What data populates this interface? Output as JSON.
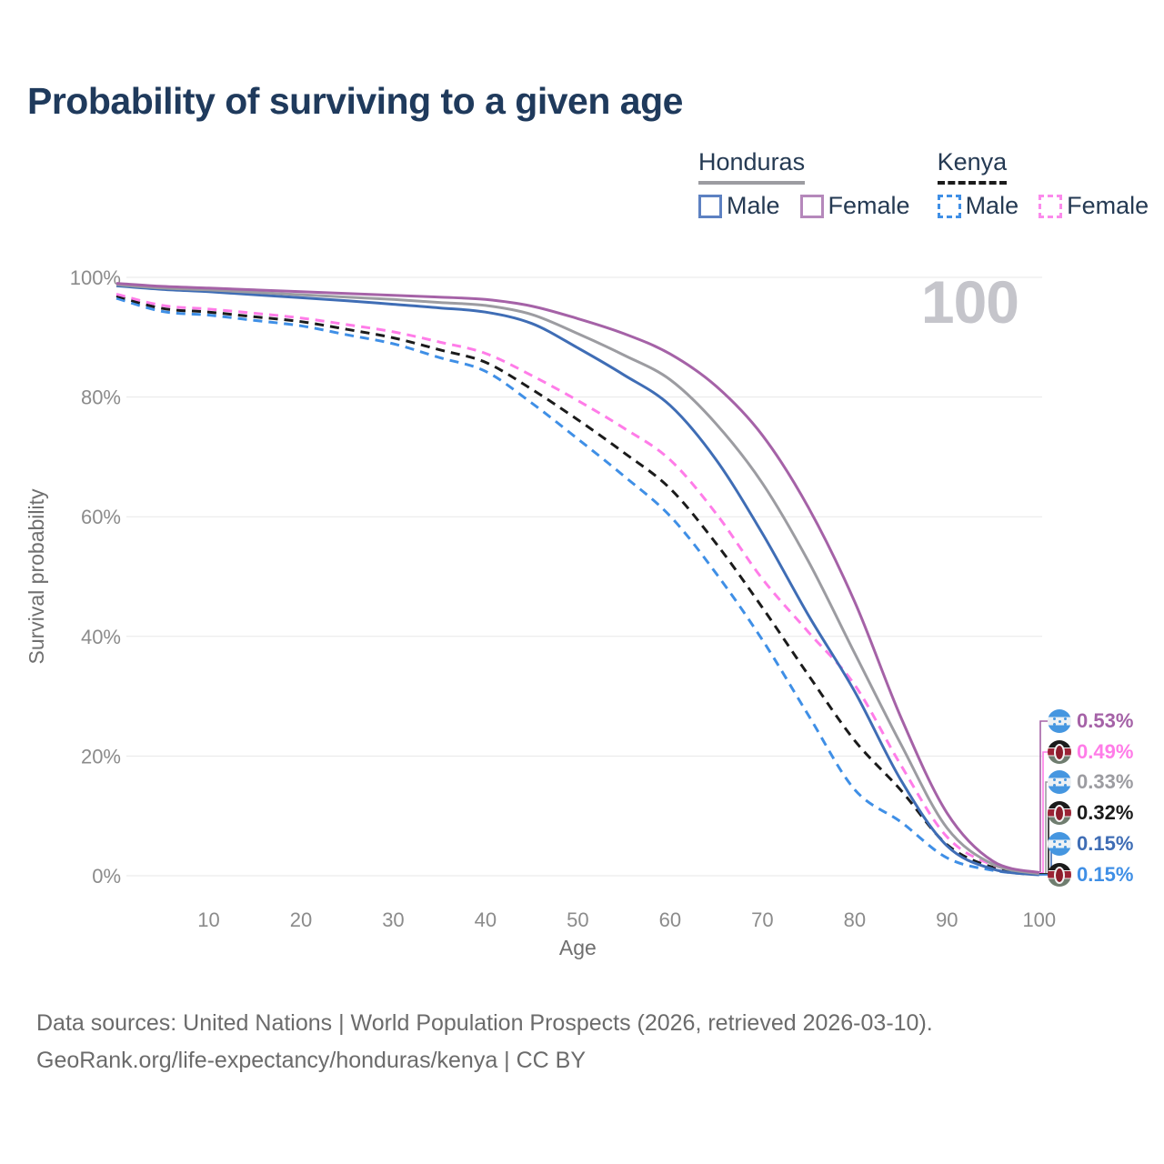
{
  "title": "Probability of surviving to a given age",
  "legend": {
    "groups": [
      {
        "name": "Honduras",
        "line_style": "solid",
        "line_color": "#9c9ca1",
        "items": [
          {
            "label": "Male",
            "swatch_style": "solid",
            "swatch_color": "#5d81c2"
          },
          {
            "label": "Female",
            "swatch_style": "solid",
            "swatch_color": "#b588bb"
          }
        ]
      },
      {
        "name": "Kenya",
        "line_style": "dashed",
        "line_color": "#1b1b1b",
        "items": [
          {
            "label": "Male",
            "swatch_style": "dashed",
            "swatch_color": "#3f8fe6"
          },
          {
            "label": "Female",
            "swatch_style": "dashed",
            "swatch_color": "#fb8aec"
          }
        ]
      }
    ]
  },
  "chart_data": {
    "type": "line",
    "title": "Probability of surviving to a given age",
    "xlabel": "Age",
    "ylabel": "Survival probability",
    "xlim": [
      0,
      100
    ],
    "ylim": [
      0,
      100
    ],
    "x_ticks": [
      10,
      20,
      30,
      40,
      50,
      60,
      70,
      80,
      90,
      100
    ],
    "y_ticks": [
      0,
      20,
      40,
      60,
      80,
      100
    ],
    "y_tick_suffix": "%",
    "grid": true,
    "legend_position": "top-right",
    "hover_age_watermark": "100",
    "series": [
      {
        "id": "kenya_male",
        "name": "Kenya Male",
        "country": "Kenya",
        "sex": "Male",
        "style": "dashed",
        "color": "#3f8fe6",
        "end_value_pct": 0.15,
        "points": [
          [
            0,
            96.5
          ],
          [
            5,
            94.3
          ],
          [
            10,
            93.7
          ],
          [
            15,
            92.8
          ],
          [
            20,
            91.9
          ],
          [
            25,
            90.4
          ],
          [
            30,
            88.9
          ],
          [
            35,
            86.6
          ],
          [
            40,
            84.3
          ],
          [
            45,
            79.0
          ],
          [
            50,
            73.0
          ],
          [
            55,
            66.8
          ],
          [
            60,
            60.1
          ],
          [
            65,
            50.5
          ],
          [
            70,
            39.4
          ],
          [
            75,
            26.8
          ],
          [
            80,
            14.4
          ],
          [
            85,
            9.0
          ],
          [
            90,
            3.0
          ],
          [
            95,
            0.9
          ],
          [
            100,
            0.15
          ]
        ]
      },
      {
        "id": "kenya_all",
        "name": "Kenya",
        "country": "Kenya",
        "sex": "Both",
        "style": "dashed",
        "color": "#1b1b1b",
        "end_value_pct": 0.32,
        "points": [
          [
            0,
            96.9
          ],
          [
            5,
            94.8
          ],
          [
            10,
            94.2
          ],
          [
            15,
            93.4
          ],
          [
            20,
            92.6
          ],
          [
            25,
            91.3
          ],
          [
            30,
            89.9
          ],
          [
            35,
            87.9
          ],
          [
            40,
            85.8
          ],
          [
            45,
            81.3
          ],
          [
            50,
            76.2
          ],
          [
            55,
            70.7
          ],
          [
            60,
            64.7
          ],
          [
            65,
            55.5
          ],
          [
            70,
            44.8
          ],
          [
            75,
            33.5
          ],
          [
            80,
            22.6
          ],
          [
            85,
            14.3
          ],
          [
            90,
            5.2
          ],
          [
            95,
            1.4
          ],
          [
            100,
            0.32
          ]
        ]
      },
      {
        "id": "kenya_female",
        "name": "Kenya Female",
        "country": "Kenya",
        "sex": "Female",
        "style": "dashed",
        "color": "#ff7ce8",
        "end_value_pct": 0.49,
        "points": [
          [
            0,
            97.2
          ],
          [
            5,
            95.3
          ],
          [
            10,
            94.7
          ],
          [
            15,
            94.0
          ],
          [
            20,
            93.2
          ],
          [
            25,
            92.1
          ],
          [
            30,
            90.9
          ],
          [
            35,
            89.2
          ],
          [
            40,
            87.3
          ],
          [
            45,
            83.6
          ],
          [
            50,
            79.4
          ],
          [
            55,
            74.8
          ],
          [
            60,
            69.5
          ],
          [
            65,
            60.5
          ],
          [
            70,
            49.6
          ],
          [
            75,
            40.7
          ],
          [
            80,
            31.9
          ],
          [
            85,
            18.5
          ],
          [
            90,
            6.5
          ],
          [
            95,
            1.8
          ],
          [
            100,
            0.49
          ]
        ]
      },
      {
        "id": "honduras_male",
        "name": "Honduras Male",
        "country": "Honduras",
        "sex": "Male",
        "style": "solid",
        "color": "#3f6db5",
        "end_value_pct": 0.15,
        "points": [
          [
            0,
            98.6
          ],
          [
            5,
            98.0
          ],
          [
            10,
            97.6
          ],
          [
            15,
            97.1
          ],
          [
            20,
            96.6
          ],
          [
            25,
            96.1
          ],
          [
            30,
            95.5
          ],
          [
            35,
            94.9
          ],
          [
            40,
            94.2
          ],
          [
            45,
            92.3
          ],
          [
            50,
            88.2
          ],
          [
            55,
            83.7
          ],
          [
            60,
            78.6
          ],
          [
            65,
            69.5
          ],
          [
            70,
            57.2
          ],
          [
            75,
            43.5
          ],
          [
            80,
            30.8
          ],
          [
            85,
            16.0
          ],
          [
            90,
            5.0
          ],
          [
            95,
            1.1
          ],
          [
            100,
            0.15
          ]
        ]
      },
      {
        "id": "honduras_all",
        "name": "Honduras",
        "country": "Honduras",
        "sex": "Both",
        "style": "solid",
        "color": "#9c9ca1",
        "end_value_pct": 0.33,
        "points": [
          [
            0,
            98.8
          ],
          [
            5,
            98.2
          ],
          [
            10,
            97.9
          ],
          [
            15,
            97.5
          ],
          [
            20,
            97.1
          ],
          [
            25,
            96.7
          ],
          [
            30,
            96.3
          ],
          [
            35,
            95.8
          ],
          [
            40,
            95.3
          ],
          [
            45,
            93.8
          ],
          [
            50,
            90.6
          ],
          [
            55,
            87.0
          ],
          [
            60,
            82.9
          ],
          [
            65,
            75.5
          ],
          [
            70,
            65.6
          ],
          [
            75,
            52.5
          ],
          [
            80,
            37.2
          ],
          [
            85,
            22.0
          ],
          [
            90,
            8.0
          ],
          [
            95,
            1.9
          ],
          [
            100,
            0.33
          ]
        ]
      },
      {
        "id": "honduras_female",
        "name": "Honduras Female",
        "country": "Honduras",
        "sex": "Female",
        "style": "solid",
        "color": "#a562a7",
        "end_value_pct": 0.53,
        "points": [
          [
            0,
            99.0
          ],
          [
            5,
            98.5
          ],
          [
            10,
            98.2
          ],
          [
            15,
            97.9
          ],
          [
            20,
            97.6
          ],
          [
            25,
            97.3
          ],
          [
            30,
            97.0
          ],
          [
            35,
            96.7
          ],
          [
            40,
            96.3
          ],
          [
            45,
            95.2
          ],
          [
            50,
            93.1
          ],
          [
            55,
            90.6
          ],
          [
            60,
            87.2
          ],
          [
            65,
            81.8
          ],
          [
            70,
            73.6
          ],
          [
            75,
            61.5
          ],
          [
            80,
            45.8
          ],
          [
            85,
            26.5
          ],
          [
            90,
            10.5
          ],
          [
            95,
            2.4
          ],
          [
            100,
            0.53
          ]
        ]
      }
    ],
    "end_labels": [
      {
        "series": "honduras_female",
        "flag": "honduras",
        "text": "0.53%",
        "color": "#a562a7"
      },
      {
        "series": "kenya_female",
        "flag": "kenya",
        "text": "0.49%",
        "color": "#ff7ce8"
      },
      {
        "series": "honduras_all",
        "flag": "honduras",
        "text": "0.33%",
        "color": "#9c9ca1"
      },
      {
        "series": "kenya_all",
        "flag": "kenya",
        "text": "0.32%",
        "color": "#1b1b1b"
      },
      {
        "series": "honduras_male",
        "flag": "honduras",
        "text": "0.15%",
        "color": "#3f6db5"
      },
      {
        "series": "kenya_male",
        "flag": "kenya",
        "text": "0.15%",
        "color": "#3f8fe6"
      }
    ]
  },
  "footer": {
    "line1": "Data sources: United Nations | World Population Prospects (2026, retrieved 2026-03-10).",
    "line2": "GeoRank.org/life-expectancy/honduras/kenya | CC BY"
  }
}
